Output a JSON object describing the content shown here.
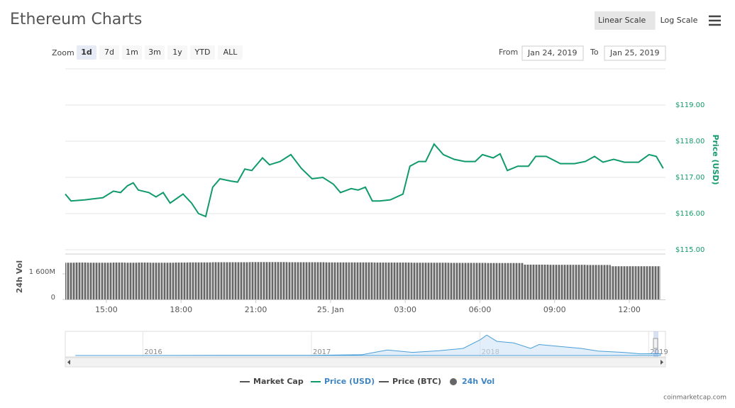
{
  "title": "Ethereum Charts",
  "scale_buttons": [
    {
      "label": "Linear Scale",
      "active": true
    },
    {
      "label": "Log Scale",
      "active": false
    }
  ],
  "zoom": {
    "label": "Zoom",
    "options": [
      "1d",
      "7d",
      "1m",
      "3m",
      "1y",
      "YTD",
      "ALL"
    ],
    "active": 0
  },
  "range": {
    "from_label": "From",
    "from": "Jan 24, 2019",
    "to_label": "To",
    "to": "Jan 25, 2019"
  },
  "legend": [
    {
      "name": "Market Cap",
      "color": "#555555",
      "marker": "line",
      "active": false
    },
    {
      "name": "Price (USD)",
      "color": "#119b6a",
      "marker": "line",
      "active": true
    },
    {
      "name": "Price (BTC)",
      "color": "#555555",
      "marker": "line",
      "active": false
    },
    {
      "name": "24h Vol",
      "color": "#666666",
      "marker": "circle",
      "active": true
    }
  ],
  "credit": "coinmarketcap.com",
  "chart_data": [
    {
      "type": "line",
      "y_label": "Price (USD)",
      "x": [
        13.35,
        13.58,
        14.15,
        14.86,
        15.28,
        15.57,
        15.85,
        16.08,
        16.28,
        16.71,
        16.99,
        17.28,
        17.56,
        18.08,
        18.42,
        18.7,
        18.99,
        19.27,
        19.56,
        19.99,
        20.27,
        20.56,
        20.84,
        21.27,
        21.55,
        21.98,
        22.41,
        22.83,
        23.26,
        23.69,
        24.12,
        24.4,
        24.83,
        25.11,
        25.4,
        25.68,
        25.97,
        26.4,
        26.91,
        27.19,
        27.54,
        27.82,
        28.16,
        28.53,
        28.96,
        29.39,
        29.81,
        30.1,
        30.53,
        30.81,
        31.1,
        31.52,
        31.95,
        32.24,
        32.66,
        33.23,
        33.8,
        34.23,
        34.6,
        34.94,
        35.37,
        35.8,
        36.37,
        36.79,
        37.08,
        37.36
      ],
      "series": [
        {
          "name": "Price (USD)",
          "color": "#119b6a",
          "values": [
            116.54,
            116.35,
            116.38,
            116.44,
            116.62,
            116.58,
            116.77,
            116.85,
            116.65,
            116.58,
            116.46,
            116.58,
            116.29,
            116.54,
            116.29,
            116.0,
            115.92,
            116.73,
            116.96,
            116.9,
            116.87,
            117.23,
            117.19,
            117.54,
            117.35,
            117.44,
            117.63,
            117.25,
            116.96,
            117.0,
            116.81,
            116.58,
            116.69,
            116.65,
            116.73,
            116.35,
            116.35,
            116.38,
            116.54,
            117.31,
            117.44,
            117.44,
            117.92,
            117.63,
            117.5,
            117.44,
            117.44,
            117.63,
            117.54,
            117.65,
            117.19,
            117.31,
            117.31,
            117.58,
            117.58,
            117.38,
            117.38,
            117.44,
            117.58,
            117.42,
            117.5,
            117.42,
            117.42,
            117.63,
            117.58,
            117.25
          ]
        }
      ],
      "xlim": [
        13.35,
        37.45
      ],
      "ylim": [
        115,
        120
      ],
      "yticks": [
        {
          "value": 115,
          "label": "$115.00"
        },
        {
          "value": 116,
          "label": "$116.00"
        },
        {
          "value": 117,
          "label": "$117.00"
        },
        {
          "value": 118,
          "label": "$118.00"
        },
        {
          "value": 119,
          "label": "$119.00"
        }
      ],
      "grid": true
    },
    {
      "type": "bar",
      "y_label": "24h Vol",
      "color": "#666666",
      "x": [
        13.5,
        14,
        14.5,
        15,
        15.5,
        16,
        16.5,
        17,
        17.5,
        18,
        18.5,
        19,
        19.5,
        20,
        20.5,
        21,
        21.5,
        22,
        22.5,
        23,
        23.5,
        24,
        24.5,
        25,
        25.5,
        26,
        26.5,
        27,
        27.5,
        28,
        28.5,
        29,
        29.5,
        30,
        30.5,
        31,
        31.5,
        32,
        32.5,
        33,
        33.5,
        34,
        34.5,
        35,
        35.5,
        36,
        36.5,
        37
      ],
      "values": [
        2300,
        2310,
        2300,
        2300,
        2310,
        2300,
        2310,
        2300,
        2300,
        2310,
        2320,
        2320,
        2330,
        2330,
        2330,
        2340,
        2340,
        2340,
        2330,
        2330,
        2330,
        2320,
        2320,
        2320,
        2320,
        2310,
        2310,
        2310,
        2300,
        2300,
        2300,
        2290,
        2290,
        2290,
        2280,
        2280,
        2280,
        2180,
        2180,
        2170,
        2170,
        2170,
        2160,
        2160,
        2080,
        2080,
        2080,
        2080
      ],
      "xlim": [
        13.35,
        37.45
      ],
      "ylim": [
        0,
        3000
      ],
      "yticks": [
        0,
        {
          "value": 1600,
          "label": "1 600M"
        }
      ],
      "xticks": [
        {
          "value": 15,
          "label": "15:00"
        },
        {
          "value": 18,
          "label": "18:00"
        },
        {
          "value": 21,
          "label": "21:00"
        },
        {
          "value": 24,
          "label": "25. Jan"
        },
        {
          "value": 27,
          "label": "03:00"
        },
        {
          "value": 30,
          "label": "06:00"
        },
        {
          "value": 33,
          "label": "09:00"
        },
        {
          "value": 36,
          "label": "12:00"
        }
      ]
    },
    {
      "type": "area",
      "color": "#4a9fd8",
      "x": [
        2015.6,
        2016.0,
        2016.5,
        2017.0,
        2017.3,
        2017.45,
        2017.6,
        2017.75,
        2017.9,
        2018.0,
        2018.04,
        2018.1,
        2018.2,
        2018.3,
        2018.35,
        2018.45,
        2018.6,
        2018.7,
        2018.85,
        2018.95,
        2019.07
      ],
      "values": [
        1,
        1,
        12,
        8,
        50,
        350,
        200,
        300,
        450,
        1000,
        1300,
        900,
        800,
        450,
        700,
        600,
        450,
        280,
        200,
        110,
        117
      ],
      "xlim": [
        2015.54,
        2019.1
      ],
      "ylim": [
        0,
        1400
      ],
      "xticks": [
        2016,
        2017,
        2018,
        2019
      ]
    }
  ]
}
